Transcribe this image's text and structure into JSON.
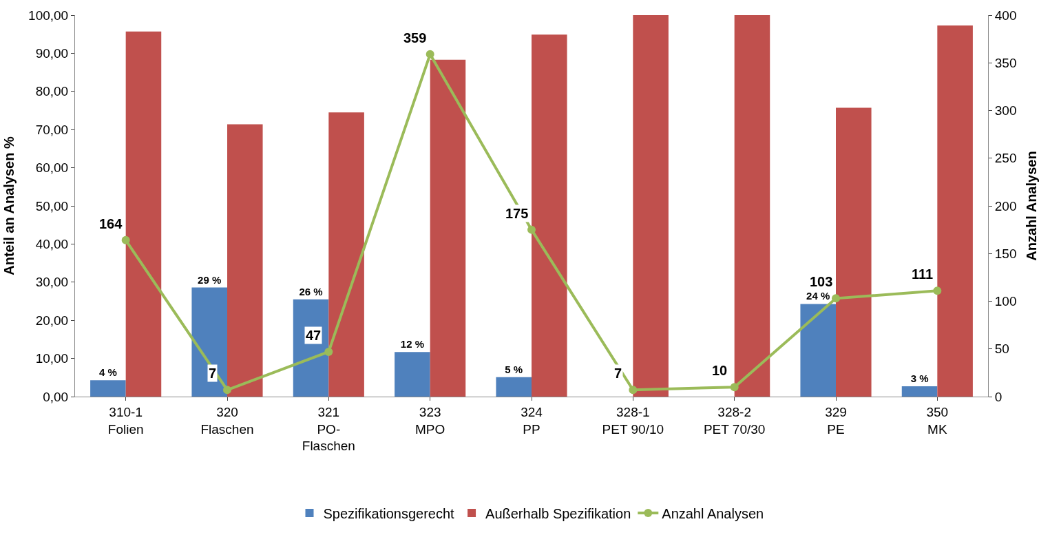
{
  "chart_data": {
    "type": "bar",
    "categories": [
      "310-1\nFolien",
      "320\nFlaschen",
      "321\nPO-\nFlaschen",
      "323\nMPO",
      "324\nPP",
      "328-1\nPET 90/10",
      "328-2\nPET 70/30",
      "329\nPE",
      "350\nMK"
    ],
    "ylabel": "Anteil an Analysen %",
    "y2label": "Anzahl Analysen",
    "ylim": [
      0,
      100
    ],
    "yticks": [
      {
        "value": 0,
        "label": "0,00"
      },
      {
        "value": 10,
        "label": "10,00"
      },
      {
        "value": 20,
        "label": "20,00"
      },
      {
        "value": 30,
        "label": "30,00"
      },
      {
        "value": 40,
        "label": "40,00"
      },
      {
        "value": 50,
        "label": "50,00"
      },
      {
        "value": 60,
        "label": "60,00"
      },
      {
        "value": 70,
        "label": "70,00"
      },
      {
        "value": 80,
        "label": "80,00"
      },
      {
        "value": 90,
        "label": "90,00"
      },
      {
        "value": 100,
        "label": "100,00"
      }
    ],
    "y2lim": [
      0,
      400
    ],
    "y2ticks": [
      0,
      50,
      100,
      150,
      200,
      250,
      300,
      350,
      400
    ],
    "series": [
      {
        "name": "Spezifikationsgerecht",
        "color": "#4f81bd",
        "values": [
          4.3,
          28.6,
          25.5,
          11.7,
          5.1,
          0,
          0,
          24.3,
          2.7
        ],
        "value_labels": [
          "4 %",
          "29 %",
          "26 %",
          "12 %",
          "5 %",
          null,
          null,
          "24 %",
          "3 %"
        ]
      },
      {
        "name": "Außerhalb Spezifikation",
        "color": "#c0504d",
        "values": [
          95.7,
          71.4,
          74.5,
          88.3,
          94.9,
          100,
          100,
          75.7,
          97.3
        ]
      },
      {
        "name": "Anzahl Analysen",
        "type": "line",
        "axis": "y2",
        "color": "#9bbb59",
        "marker": "circle",
        "values": [
          164,
          7,
          47,
          359,
          175,
          7,
          10,
          103,
          111
        ],
        "value_labels": [
          "164",
          "7",
          "47",
          "359",
          "175",
          "7",
          "10",
          "103",
          "111"
        ]
      }
    ],
    "legend": "bottom"
  }
}
